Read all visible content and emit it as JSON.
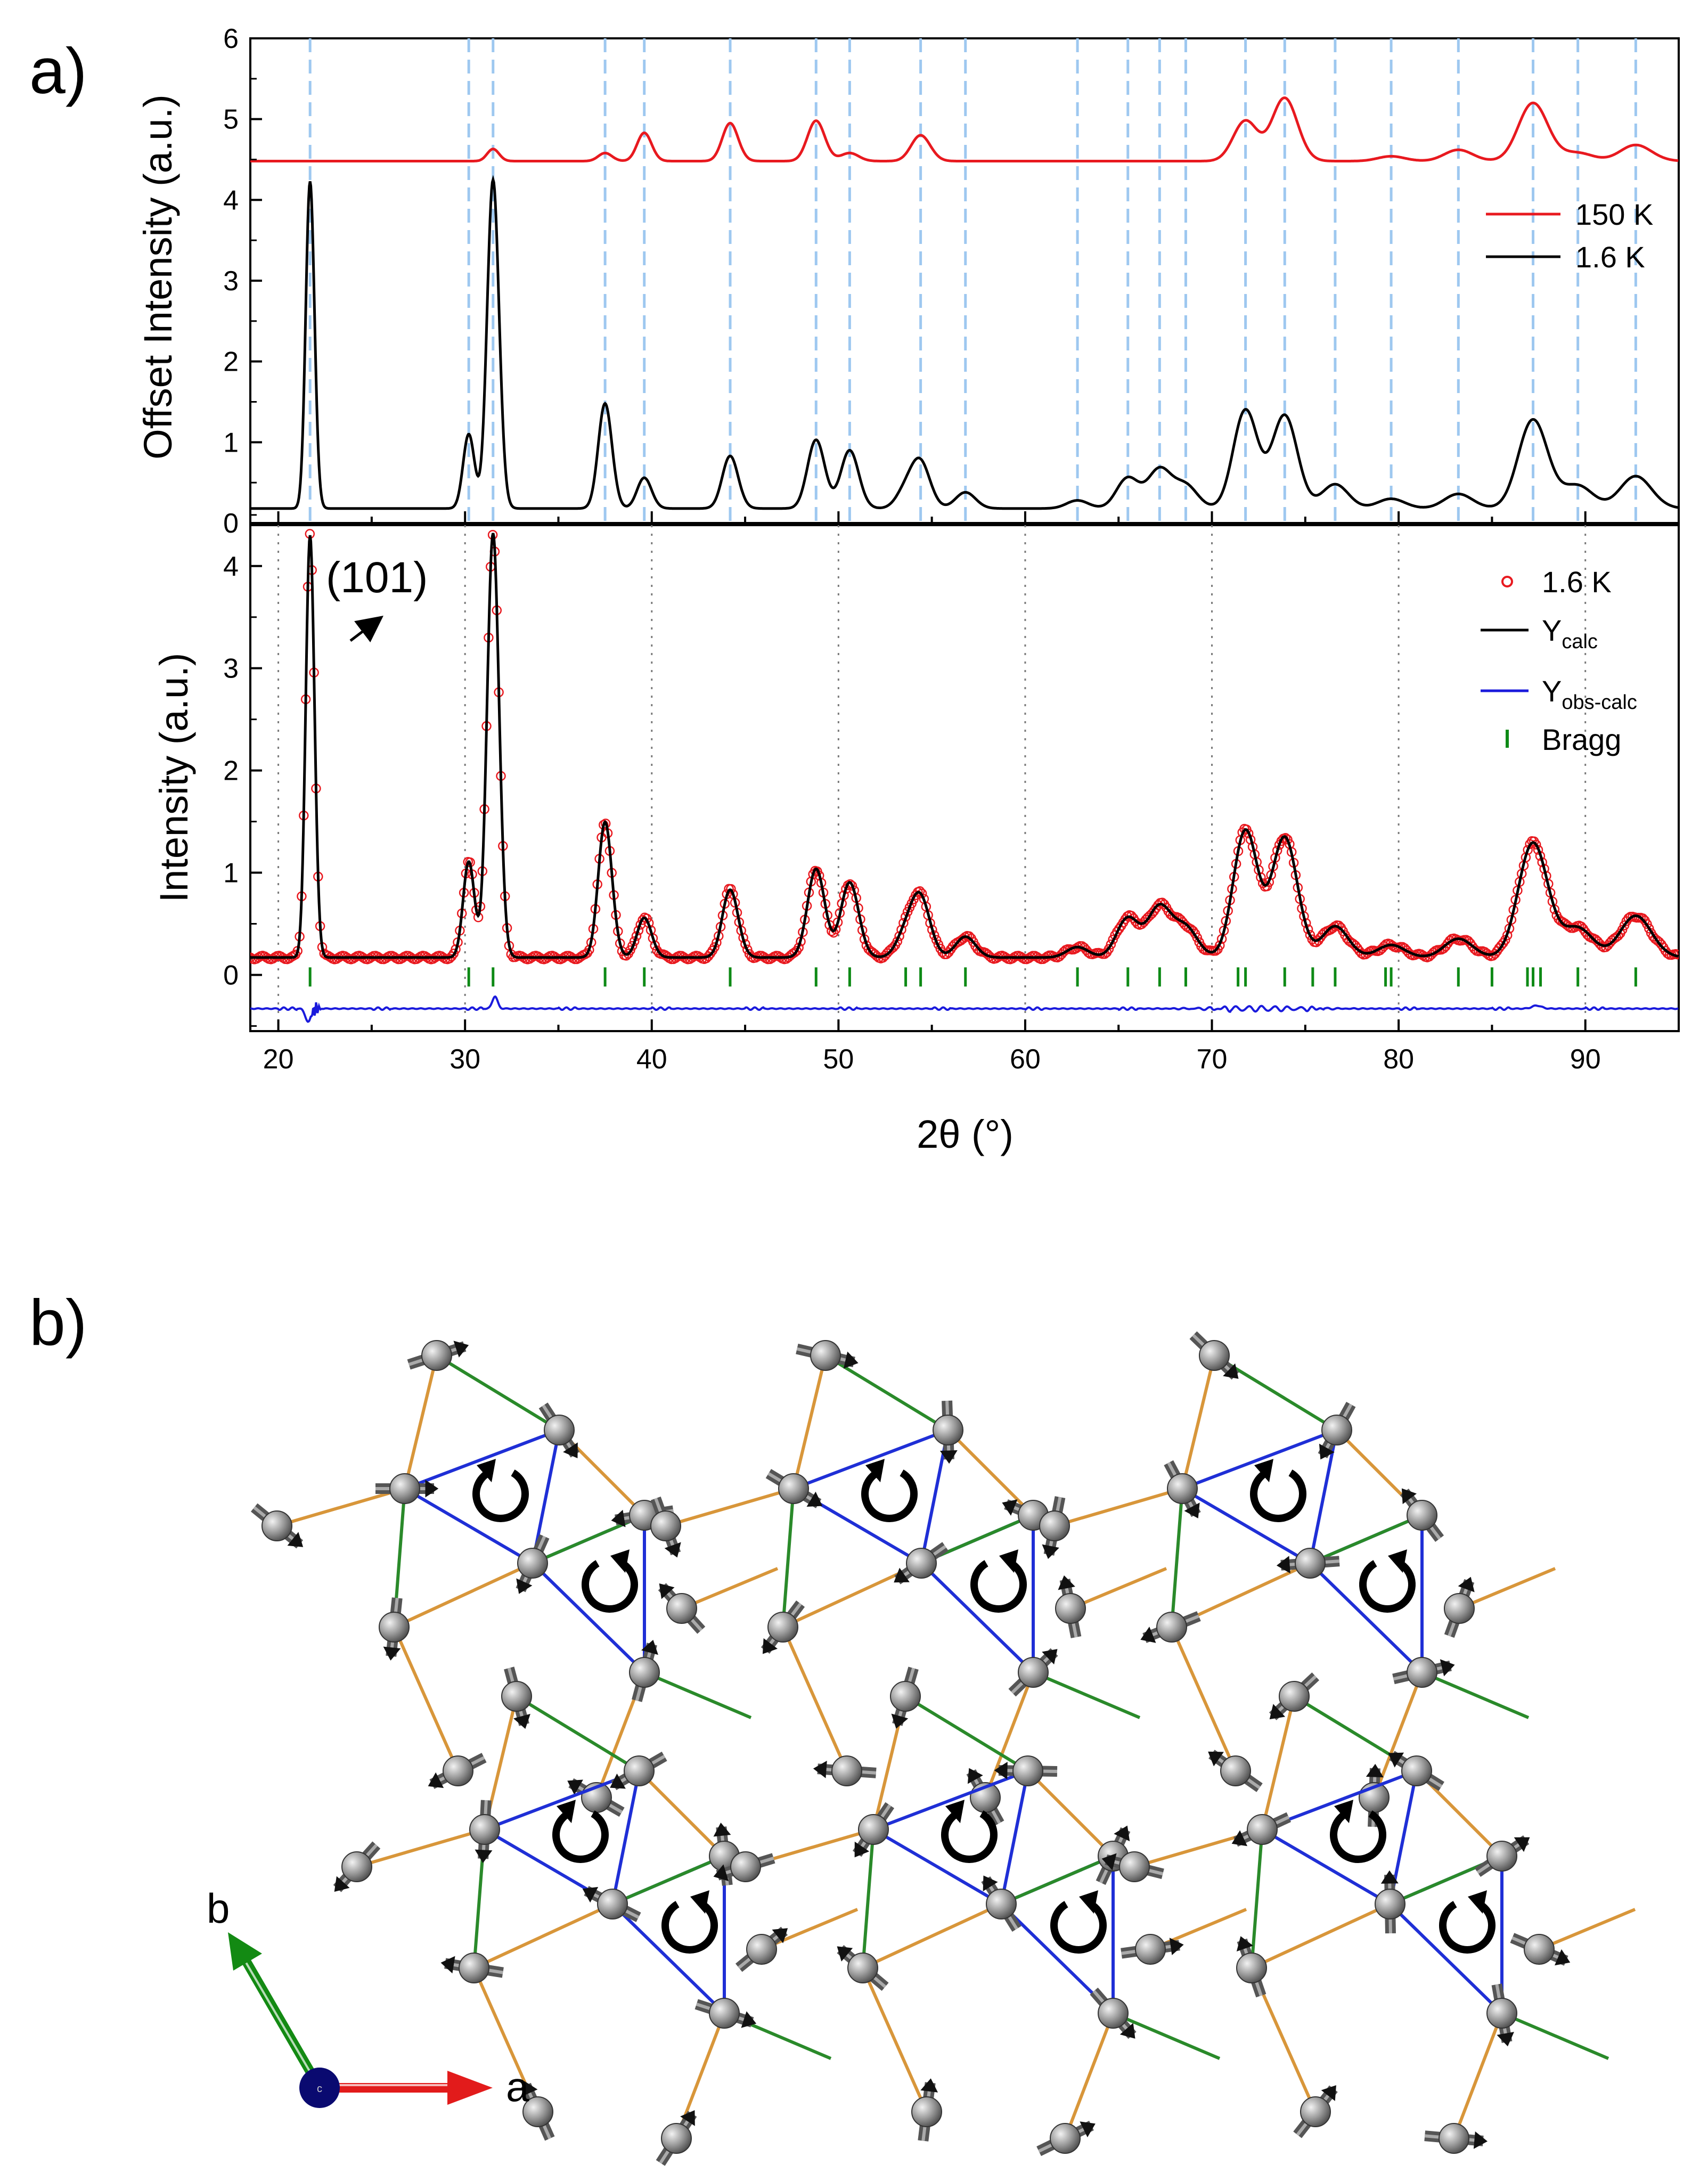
{
  "panels": {
    "a_label": "a)",
    "b_label": "b)"
  },
  "chart_data": [
    {
      "type": "line",
      "panel": "top",
      "ylabel": "Offset Intensity (a.u.)",
      "xlim": [
        18.5,
        95
      ],
      "ylim": [
        0,
        6
      ],
      "y_ticks": [
        "0",
        "1",
        "2",
        "3",
        "4",
        "5",
        "6"
      ],
      "peak_markers_2theta": [
        21.7,
        30.2,
        31.5,
        37.5,
        39.6,
        44.2,
        48.8,
        50.6,
        54.4,
        56.8,
        62.8,
        65.5,
        67.2,
        68.6,
        71.8,
        73.9,
        76.6,
        79.6,
        83.2,
        87.2,
        89.6,
        92.7
      ],
      "series": [
        {
          "name": "150 K",
          "color": "#e8191f",
          "baseline": 4.48,
          "peaks": [
            [
              31.5,
              0.15
            ],
            [
              37.5,
              0.1
            ],
            [
              39.6,
              0.35
            ],
            [
              44.2,
              0.47
            ],
            [
              48.8,
              0.5
            ],
            [
              50.6,
              0.1
            ],
            [
              54.4,
              0.32
            ],
            [
              71.8,
              0.5
            ],
            [
              73.9,
              0.78
            ],
            [
              79.6,
              0.06
            ],
            [
              83.2,
              0.14
            ],
            [
              87.2,
              0.72
            ],
            [
              89.6,
              0.1
            ],
            [
              92.7,
              0.2
            ]
          ]
        },
        {
          "name": "1.6 K",
          "color": "#000000",
          "baseline": 0.18,
          "peaks": [
            [
              21.7,
              4.05
            ],
            [
              30.2,
              0.92
            ],
            [
              31.5,
              4.07
            ],
            [
              37.5,
              1.3
            ],
            [
              39.6,
              0.38
            ],
            [
              44.2,
              0.65
            ],
            [
              48.8,
              0.85
            ],
            [
              50.6,
              0.72
            ],
            [
              53.6,
              0.22
            ],
            [
              54.4,
              0.55
            ],
            [
              56.8,
              0.2
            ],
            [
              62.8,
              0.1
            ],
            [
              65.5,
              0.38
            ],
            [
              67.2,
              0.48
            ],
            [
              68.6,
              0.28
            ],
            [
              71.8,
              1.22
            ],
            [
              73.9,
              1.15
            ],
            [
              76.6,
              0.3
            ],
            [
              79.6,
              0.12
            ],
            [
              83.2,
              0.18
            ],
            [
              87.2,
              1.1
            ],
            [
              89.6,
              0.28
            ],
            [
              92.7,
              0.4
            ]
          ]
        }
      ]
    },
    {
      "type": "line",
      "panel": "bottom",
      "title": "",
      "xlabel": "2θ (°)",
      "ylabel": "Intensity (a.u.)",
      "xlim": [
        18.5,
        95
      ],
      "ylim": [
        -0.55,
        4.4
      ],
      "x_ticks": [
        "20",
        "30",
        "40",
        "50",
        "60",
        "70",
        "80",
        "90"
      ],
      "y_ticks": [
        "0",
        "1",
        "2",
        "3",
        "4"
      ],
      "annotation": "(101)",
      "bragg_offset": -0.02,
      "diff_offset": -0.33,
      "bragg_positions": [
        21.7,
        30.2,
        31.5,
        37.5,
        39.6,
        44.2,
        48.8,
        50.6,
        53.6,
        54.4,
        56.8,
        62.8,
        65.5,
        67.2,
        68.6,
        71.4,
        71.8,
        73.9,
        75.4,
        76.6,
        79.3,
        79.6,
        83.2,
        85.0,
        86.9,
        87.2,
        87.6,
        89.6,
        92.7
      ],
      "series": [
        {
          "name": "1.6 K",
          "style": "open-circle",
          "color": "#e8191f"
        },
        {
          "name": "Y",
          "sub": "calc",
          "color": "#000000"
        },
        {
          "name": "Y",
          "sub": "obs-calc",
          "color": "#1a1adc"
        },
        {
          "name": "Bragg",
          "style": "tick",
          "color": "#0e8a16"
        }
      ]
    }
  ],
  "structure": {
    "axis_a": "a",
    "axis_b": "b",
    "axis_c": "c",
    "colors": {
      "bond_orange": "#d8963a",
      "bond_green": "#2a8a2a",
      "bond_blue": "#1f2fd6",
      "atom": "#8c8c8c",
      "arrow_a": "#e21b1b",
      "arrow_b": "#138a13",
      "axis_dot": "#0a0a70"
    }
  }
}
